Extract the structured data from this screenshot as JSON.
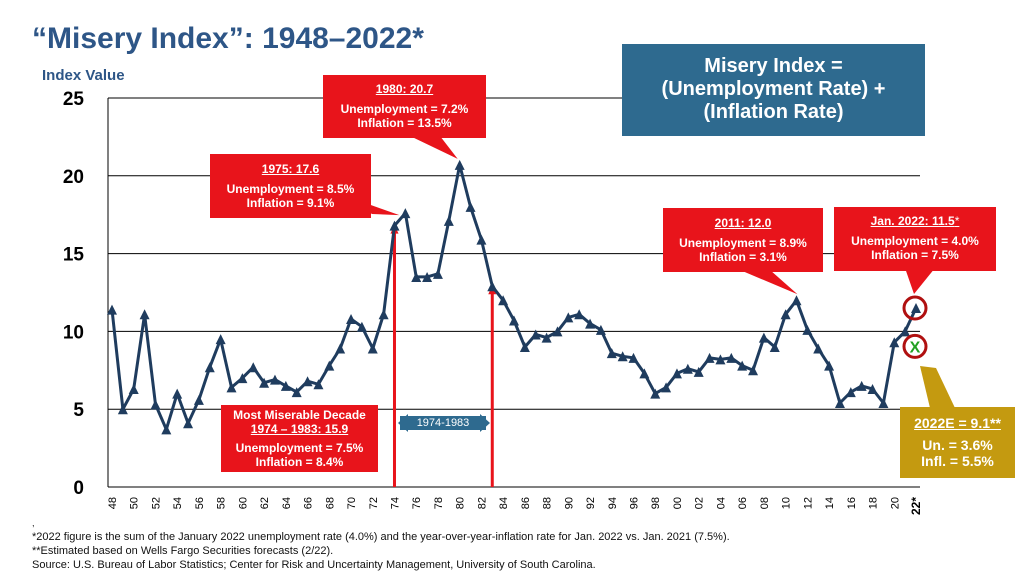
{
  "title": "“Misery Index”: 1948–2022*",
  "formula": {
    "line1": "Misery Index =",
    "line2": "(Unemployment Rate) +",
    "line3": "(Inflation Rate)"
  },
  "callouts": {
    "c1980": {
      "head": "1980: 20.7",
      "line1": "Unemployment = 7.2%",
      "line2": "Inflation = 13.5%"
    },
    "c1975": {
      "head": "1975: 17.6",
      "line1": "Unemployment = 8.5%",
      "line2": "Inflation = 9.1%"
    },
    "c2011": {
      "head": "2011: 12.0",
      "line1": "Unemployment = 8.9%",
      "line2": "Inflation = 3.1%"
    },
    "c2022": {
      "head": "Jan. 2022: 11.5",
      "suffix": "*",
      "line1": "Unemployment = 4.0%",
      "line2": "Inflation = 7.5%"
    },
    "decade": {
      "head1": "Most Miserable Decade",
      "head2": "1974 – 1983: 15.9",
      "line1": "Unemployment = 7.5%",
      "line2": "Inflation = 8.4%"
    }
  },
  "decade_label": "1974-1983",
  "estimate": {
    "head": "2022E = 9.1",
    "suffix": "**",
    "line1": "Un. = 3.6%",
    "line2": "Infl. = 5.5%"
  },
  "estimate_marker": "X",
  "footnotes": {
    "stray": ",",
    "note1": "*2022 figure is the sum of the January 2022 unemployment rate (4.0%) and the year-over-year-inflation rate for Jan. 2022 vs. Jan. 2021 (7.5%).",
    "note2": "**Estimated based on Wells Fargo Securities forecasts (2/22).",
    "source": "Source:  U.S. Bureau of Labor Statistics; Center for Risk and Uncertainty Management, University of South Carolina."
  },
  "colors": {
    "line": "#1f3c5e",
    "accent": "#e8141b",
    "formula_bg": "#2e6a8f",
    "estimate": "#c49a10",
    "title": "#2e5687"
  },
  "chart_data": {
    "type": "line",
    "title": "“Misery Index”: 1948–2022*",
    "ylabel": "Index Value",
    "xlabel": "",
    "ylim": [
      0,
      25
    ],
    "yticks": [
      0,
      5,
      10,
      15,
      20,
      25
    ],
    "xticks": [
      "48",
      "50",
      "52",
      "54",
      "56",
      "58",
      "60",
      "62",
      "64",
      "66",
      "68",
      "70",
      "72",
      "74",
      "76",
      "78",
      "80",
      "82",
      "84",
      "86",
      "88",
      "90",
      "92",
      "94",
      "96",
      "98",
      "00",
      "02",
      "04",
      "06",
      "08",
      "10",
      "12",
      "14",
      "16",
      "18",
      "20",
      "22*"
    ],
    "series": [
      {
        "name": "Misery Index",
        "x": [
          1948,
          1949,
          1950,
          1951,
          1952,
          1953,
          1954,
          1955,
          1956,
          1957,
          1958,
          1959,
          1960,
          1961,
          1962,
          1963,
          1964,
          1965,
          1966,
          1967,
          1968,
          1969,
          1970,
          1971,
          1972,
          1973,
          1974,
          1975,
          1976,
          1977,
          1978,
          1979,
          1980,
          1981,
          1982,
          1983,
          1984,
          1985,
          1986,
          1987,
          1988,
          1989,
          1990,
          1991,
          1992,
          1993,
          1994,
          1995,
          1996,
          1997,
          1998,
          1999,
          2000,
          2001,
          2002,
          2003,
          2004,
          2005,
          2006,
          2007,
          2008,
          2009,
          2010,
          2011,
          2012,
          2013,
          2014,
          2015,
          2016,
          2017,
          2018,
          2019,
          2020,
          2021,
          2022
        ],
        "values": [
          11.4,
          5.0,
          6.3,
          11.1,
          5.3,
          3.7,
          6.0,
          4.1,
          5.6,
          7.7,
          9.5,
          6.4,
          7.0,
          7.7,
          6.7,
          6.9,
          6.5,
          6.1,
          6.8,
          6.6,
          7.8,
          8.9,
          10.8,
          10.3,
          8.9,
          11.1,
          16.8,
          17.6,
          13.5,
          13.5,
          13.7,
          17.1,
          20.7,
          18.0,
          15.9,
          12.9,
          12.0,
          10.7,
          9.0,
          9.8,
          9.6,
          10.0,
          10.9,
          11.1,
          10.5,
          10.1,
          8.6,
          8.4,
          8.3,
          7.3,
          6.0,
          6.4,
          7.3,
          7.6,
          7.4,
          8.3,
          8.2,
          8.3,
          7.8,
          7.5,
          9.6,
          9.0,
          11.1,
          12.0,
          10.1,
          8.9,
          7.8,
          5.4,
          6.1,
          6.5,
          6.3,
          5.4,
          9.3,
          10.0,
          11.5
        ]
      }
    ],
    "estimate_2022": 9.1,
    "vertical_markers": [
      1974,
      1983
    ]
  }
}
